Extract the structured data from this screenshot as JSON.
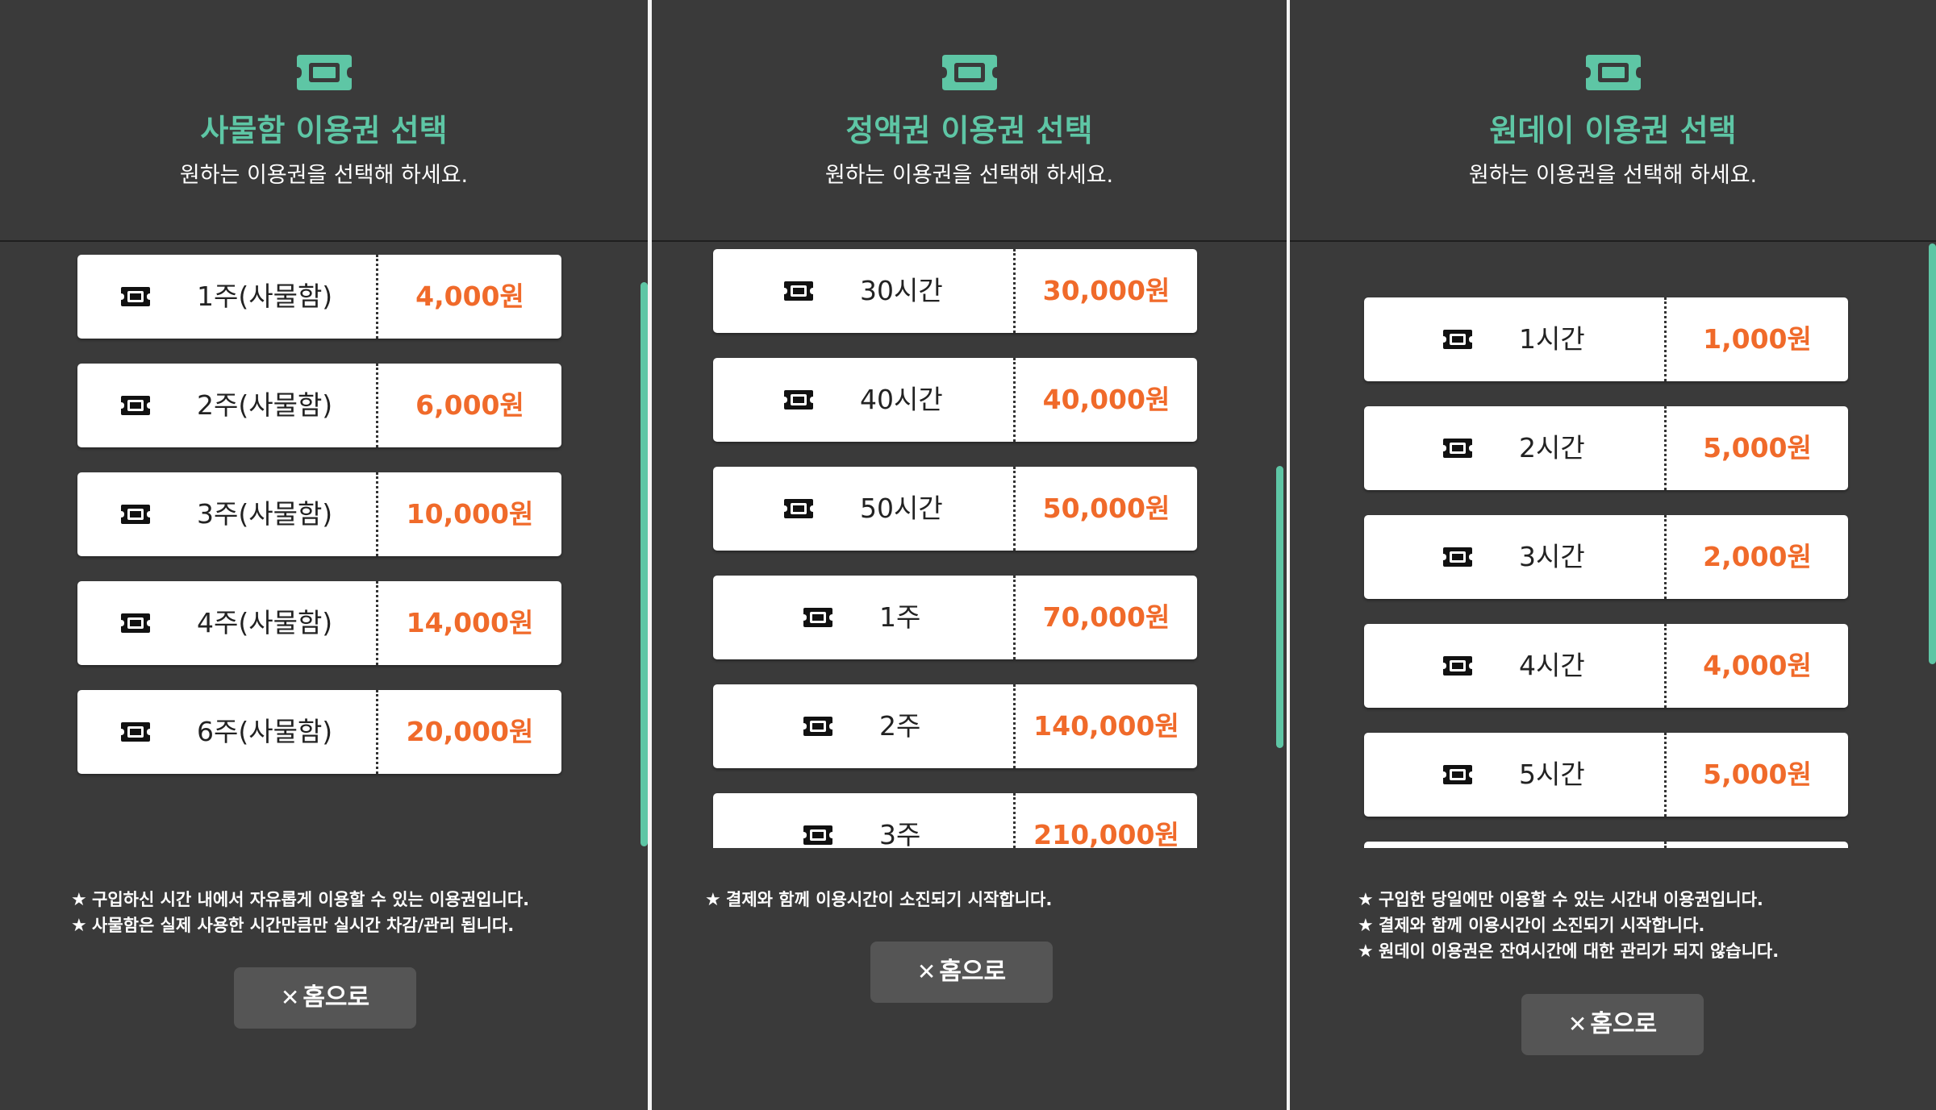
{
  "colors": {
    "accent": "#5ec6a5",
    "price": "#f06a2a",
    "panel_bg": "#3a3a3a",
    "button_bg": "#555555"
  },
  "panels": [
    {
      "icon": "ticket-icon",
      "title": "사물함 이용권 선택",
      "subtitle": "원하는 이용권을 선택해 하세요.",
      "items": [
        {
          "label": "1주(사물함)",
          "price": "4,000원"
        },
        {
          "label": "2주(사물함)",
          "price": "6,000원"
        },
        {
          "label": "3주(사물함)",
          "price": "10,000원"
        },
        {
          "label": "4주(사물함)",
          "price": "14,000원"
        },
        {
          "label": "6주(사물함)",
          "price": "20,000원"
        }
      ],
      "notes": [
        "구입하신 시간 내에서 자유롭게 이용할 수 있는 이용권입니다.",
        "사물함은 실제 사용한 시간만큼만 실시간 차감/관리 됩니다."
      ],
      "home_label": "홈으로"
    },
    {
      "icon": "ticket-icon",
      "title": "정액권 이용권 선택",
      "subtitle": "원하는 이용권을 선택해 하세요.",
      "items": [
        {
          "label": "30시간",
          "price": "30,000원"
        },
        {
          "label": "40시간",
          "price": "40,000원"
        },
        {
          "label": "50시간",
          "price": "50,000원"
        },
        {
          "label": "1주",
          "price": "70,000원"
        },
        {
          "label": "2주",
          "price": "140,000원"
        },
        {
          "label": "3주",
          "price": "210,000원"
        }
      ],
      "notes": [
        "결제와 함께 이용시간이 소진되기 시작합니다."
      ],
      "home_label": "홈으로"
    },
    {
      "icon": "ticket-icon",
      "title": "원데이 이용권 선택",
      "subtitle": "원하는 이용권을 선택해 하세요.",
      "items": [
        {
          "label": "1시간",
          "price": "1,000원"
        },
        {
          "label": "2시간",
          "price": "5,000원"
        },
        {
          "label": "3시간",
          "price": "2,000원"
        },
        {
          "label": "4시간",
          "price": "4,000원"
        },
        {
          "label": "5시간",
          "price": "5,000원"
        }
      ],
      "notes": [
        "구입한 당일에만 이용할 수 있는 시간내 이용권입니다.",
        "결제와 함께 이용시간이 소진되기 시작합니다.",
        "원데이 이용권은 잔여시간에 대한 관리가 되지 않습니다."
      ],
      "home_label": "홈으로"
    }
  ]
}
